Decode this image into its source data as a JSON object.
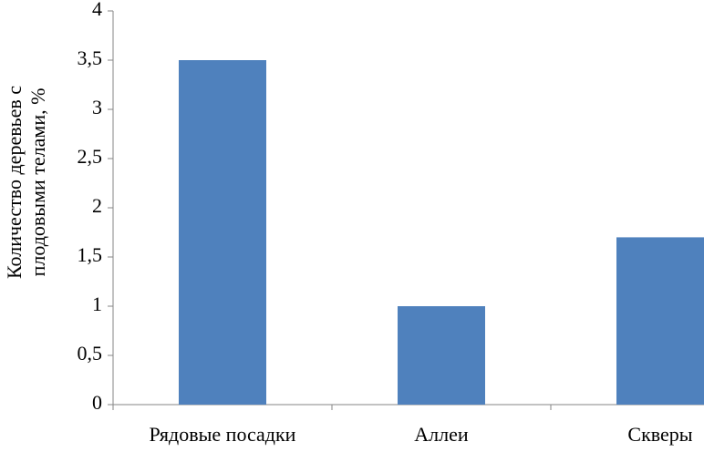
{
  "chart_data": {
    "type": "bar",
    "ylabel": [
      "Количество деревьев с",
      "плодовыми телами, %"
    ],
    "categories": [
      "Рядовые посадки",
      "Аллеи",
      "Скверы"
    ],
    "values": [
      3.5,
      1,
      1.7
    ],
    "color": "#4f81bd",
    "ylim": [
      0,
      4
    ],
    "yticks": [
      0,
      {
        "value": 0.5,
        "label": "0,5"
      },
      1,
      {
        "value": 1.5,
        "label": "1,5"
      },
      2,
      {
        "value": 2.5,
        "label": "2,5"
      },
      3,
      {
        "value": 3.5,
        "label": "3,5"
      },
      4
    ],
    "grid": false
  }
}
